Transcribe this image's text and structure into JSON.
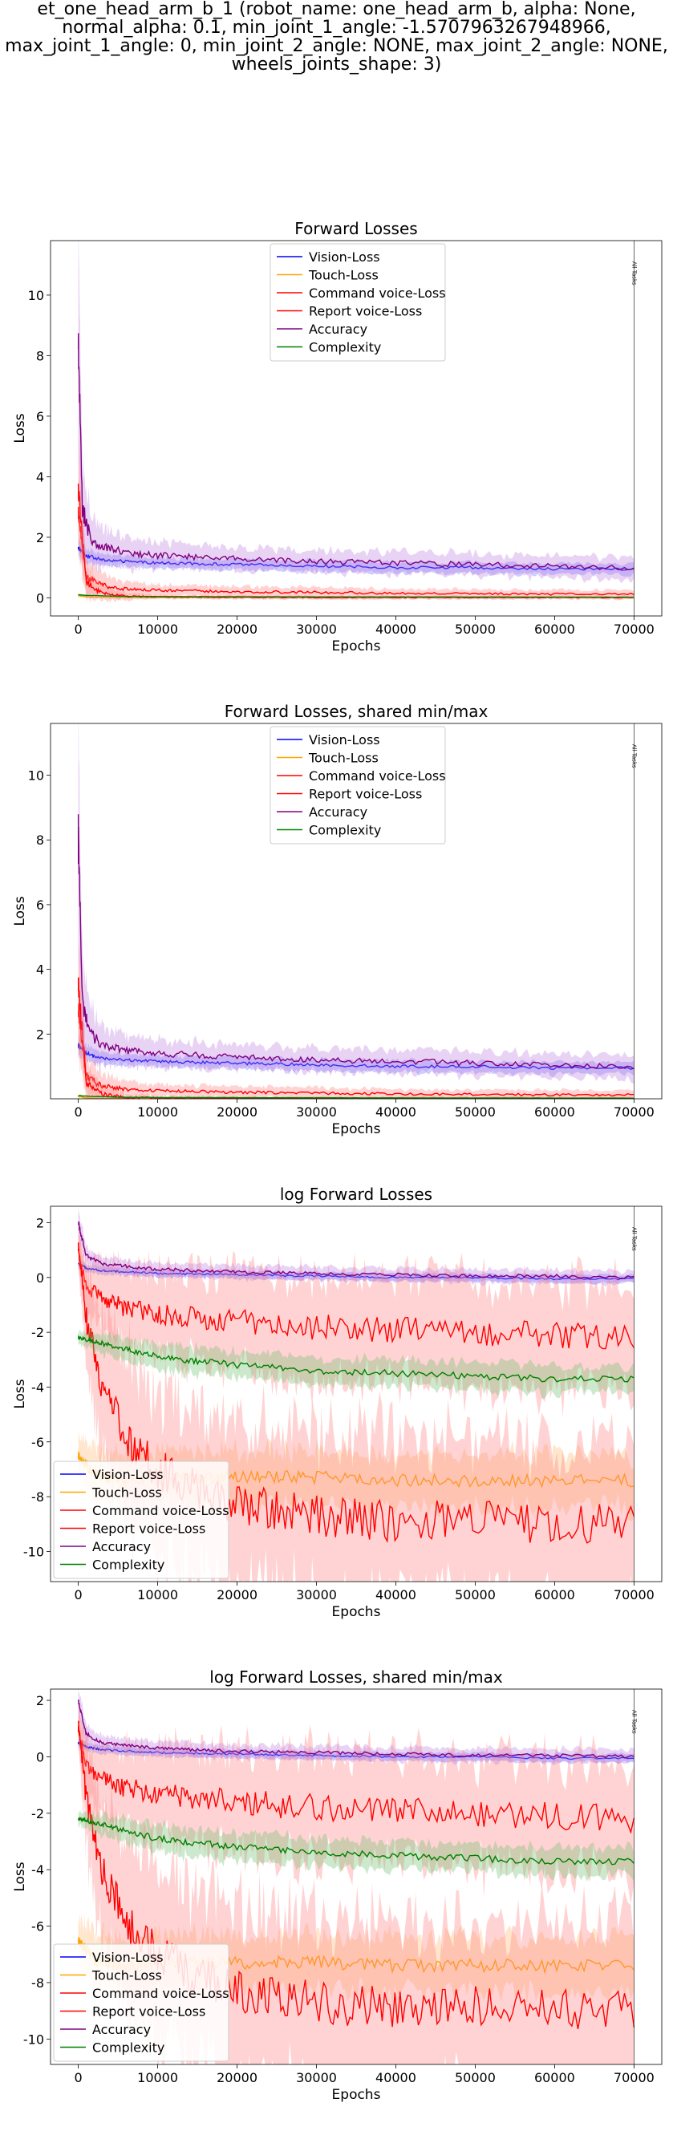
{
  "figure": {
    "suptitle_lines": [
      "et_one_head_arm_b_1 (robot_name: one_head_arm_b, alpha: None,",
      "normal_alpha: 0.1, min_joint_1_angle: -1.5707963267948966,",
      "max_joint_1_angle: 0, min_joint_2_angle: NONE, max_joint_2_angle: NONE,",
      "wheels_joints_shape: 3)"
    ]
  },
  "series_style": [
    {
      "name": "Vision-Loss",
      "color": "#0000ff",
      "band": "#7070ff"
    },
    {
      "name": "Touch-Loss",
      "color": "#ffa500",
      "band": "#ffb870"
    },
    {
      "name": "Command voice-Loss",
      "color": "#ff0000",
      "band": "#ff8080"
    },
    {
      "name": "Report voice-Loss",
      "color": "#ff0000",
      "band": "#ff8080"
    },
    {
      "name": "Accuracy",
      "color": "#800080",
      "band": "#c080e0"
    },
    {
      "name": "Complexity",
      "color": "#008000",
      "band": "#70c070"
    }
  ],
  "chart_data": [
    {
      "type": "line",
      "title": "Forward Losses",
      "xlabel": "Epochs",
      "ylabel": "Loss",
      "xlim": [
        -3500,
        73500
      ],
      "ylim": [
        -0.6,
        11.8
      ],
      "xticks": [
        0,
        10000,
        20000,
        30000,
        40000,
        50000,
        60000,
        70000
      ],
      "yticks": [
        0,
        2,
        4,
        6,
        8,
        10
      ],
      "legend": "top-center",
      "grid": false,
      "vline": {
        "x": 70000,
        "label": "All Tasks"
      },
      "series": [
        {
          "name": "Vision-Loss",
          "x": [
            0,
            1000,
            3000,
            6000,
            10000,
            20000,
            30000,
            40000,
            50000,
            60000,
            70000
          ],
          "y": [
            1.65,
            1.4,
            1.25,
            1.2,
            1.15,
            1.1,
            1.05,
            1.0,
            1.0,
            0.95,
            0.95
          ],
          "band": [
            0.25,
            0.2,
            0.15,
            0.15,
            0.15,
            0.15,
            0.15,
            0.15,
            0.15,
            0.15,
            0.15
          ]
        },
        {
          "name": "Touch-Loss",
          "x": [
            0,
            1000,
            3000,
            10000,
            30000,
            50000,
            70000
          ],
          "y": [
            0.08,
            0.03,
            0.01,
            0.01,
            0.01,
            0.01,
            0.01
          ],
          "band": [
            0.05,
            0.02,
            0.01,
            0.01,
            0.01,
            0.01,
            0.01
          ]
        },
        {
          "name": "Command voice-Loss",
          "x": [
            0,
            1000,
            3000,
            6000,
            10000,
            20000,
            30000,
            40000,
            50000,
            60000,
            70000
          ],
          "y": [
            2.8,
            0.7,
            0.4,
            0.3,
            0.25,
            0.2,
            0.18,
            0.15,
            0.14,
            0.12,
            0.12
          ],
          "band": [
            1.0,
            0.5,
            0.3,
            0.2,
            0.15,
            0.15,
            0.15,
            0.12,
            0.12,
            0.12,
            0.12
          ]
        },
        {
          "name": "Report voice-Loss",
          "x": [
            0,
            1000,
            3000,
            6000,
            10000,
            20000,
            30000,
            40000,
            50000,
            60000,
            70000
          ],
          "y": [
            3.7,
            0.5,
            0.15,
            0.05,
            0.03,
            0.02,
            0.01,
            0.01,
            0.01,
            0.01,
            0.01
          ],
          "band": [
            1.5,
            0.4,
            0.2,
            0.1,
            0.05,
            0.05,
            0.05,
            0.05,
            0.05,
            0.05,
            0.05
          ]
        },
        {
          "name": "Accuracy",
          "x": [
            0,
            500,
            1500,
            3000,
            6000,
            10000,
            20000,
            30000,
            40000,
            50000,
            60000,
            70000
          ],
          "y": [
            8.0,
            3.0,
            2.0,
            1.7,
            1.5,
            1.4,
            1.3,
            1.2,
            1.15,
            1.1,
            1.05,
            1.0
          ],
          "band": [
            3.0,
            1.2,
            0.7,
            0.5,
            0.4,
            0.35,
            0.3,
            0.3,
            0.3,
            0.3,
            0.3,
            0.3
          ]
        },
        {
          "name": "Complexity",
          "x": [
            0,
            1000,
            5000,
            10000,
            30000,
            50000,
            70000
          ],
          "y": [
            0.1,
            0.08,
            0.05,
            0.04,
            0.03,
            0.025,
            0.02
          ],
          "band": [
            0.02,
            0.02,
            0.01,
            0.01,
            0.01,
            0.01,
            0.01
          ]
        }
      ]
    },
    {
      "type": "line",
      "title": "Forward Losses, shared min/max",
      "xlabel": "Epochs",
      "ylabel": "Loss",
      "xlim": [
        -3500,
        73500
      ],
      "ylim": [
        0,
        11.6
      ],
      "xticks": [
        0,
        10000,
        20000,
        30000,
        40000,
        50000,
        60000,
        70000
      ],
      "yticks": [
        2,
        4,
        6,
        8,
        10
      ],
      "legend": "top-center",
      "grid": false,
      "vline": {
        "x": 70000,
        "label": "All Tasks"
      },
      "series": [
        {
          "name": "Vision-Loss",
          "x": [
            0,
            1000,
            3000,
            6000,
            10000,
            20000,
            30000,
            40000,
            50000,
            60000,
            70000
          ],
          "y": [
            1.65,
            1.4,
            1.25,
            1.2,
            1.15,
            1.1,
            1.05,
            1.0,
            1.0,
            0.95,
            0.95
          ],
          "band": [
            0.25,
            0.2,
            0.15,
            0.15,
            0.15,
            0.15,
            0.15,
            0.15,
            0.15,
            0.15,
            0.15
          ]
        },
        {
          "name": "Touch-Loss",
          "x": [
            0,
            1000,
            3000,
            10000,
            30000,
            50000,
            70000
          ],
          "y": [
            0.08,
            0.03,
            0.01,
            0.01,
            0.01,
            0.01,
            0.01
          ],
          "band": [
            0.05,
            0.02,
            0.01,
            0.01,
            0.01,
            0.01,
            0.01
          ]
        },
        {
          "name": "Command voice-Loss",
          "x": [
            0,
            1000,
            3000,
            6000,
            10000,
            20000,
            30000,
            40000,
            50000,
            60000,
            70000
          ],
          "y": [
            2.8,
            0.7,
            0.4,
            0.3,
            0.25,
            0.2,
            0.18,
            0.15,
            0.14,
            0.12,
            0.12
          ],
          "band": [
            1.0,
            0.5,
            0.3,
            0.2,
            0.15,
            0.15,
            0.15,
            0.12,
            0.12,
            0.12,
            0.12
          ]
        },
        {
          "name": "Report voice-Loss",
          "x": [
            0,
            1000,
            3000,
            6000,
            10000,
            20000,
            30000,
            40000,
            50000,
            60000,
            70000
          ],
          "y": [
            3.7,
            0.5,
            0.15,
            0.05,
            0.03,
            0.02,
            0.01,
            0.01,
            0.01,
            0.01,
            0.01
          ],
          "band": [
            1.5,
            0.4,
            0.2,
            0.1,
            0.05,
            0.05,
            0.05,
            0.05,
            0.05,
            0.05,
            0.05
          ]
        },
        {
          "name": "Accuracy",
          "x": [
            0,
            500,
            1500,
            3000,
            6000,
            10000,
            20000,
            30000,
            40000,
            50000,
            60000,
            70000
          ],
          "y": [
            8.0,
            3.0,
            2.0,
            1.7,
            1.5,
            1.4,
            1.3,
            1.2,
            1.15,
            1.1,
            1.05,
            1.0
          ],
          "band": [
            3.0,
            1.2,
            0.7,
            0.5,
            0.4,
            0.35,
            0.3,
            0.3,
            0.3,
            0.3,
            0.3,
            0.3
          ]
        },
        {
          "name": "Complexity",
          "x": [
            0,
            1000,
            5000,
            10000,
            30000,
            50000,
            70000
          ],
          "y": [
            0.1,
            0.08,
            0.05,
            0.04,
            0.03,
            0.025,
            0.02
          ],
          "band": [
            0.02,
            0.02,
            0.01,
            0.01,
            0.01,
            0.01,
            0.01
          ]
        }
      ]
    },
    {
      "type": "line",
      "title": "log Forward Losses",
      "xlabel": "Epochs",
      "ylabel": "Loss",
      "xlim": [
        -3500,
        73500
      ],
      "ylim": [
        -11.1,
        2.6
      ],
      "xticks": [
        0,
        10000,
        20000,
        30000,
        40000,
        50000,
        60000,
        70000
      ],
      "yticks": [
        -10,
        -8,
        -6,
        -4,
        -2,
        0,
        2
      ],
      "legend": "bottom-left",
      "grid": false,
      "vline": {
        "x": 70000,
        "label": "All Tasks"
      },
      "series": [
        {
          "name": "Vision-Loss",
          "x": [
            0,
            1000,
            3000,
            10000,
            20000,
            30000,
            40000,
            50000,
            60000,
            70000
          ],
          "y": [
            0.5,
            0.35,
            0.25,
            0.15,
            0.1,
            0.05,
            0.0,
            0.0,
            -0.05,
            -0.05
          ],
          "band": [
            0.15,
            0.12,
            0.12,
            0.12,
            0.12,
            0.12,
            0.12,
            0.12,
            0.12,
            0.12
          ]
        },
        {
          "name": "Touch-Loss",
          "x": [
            0,
            2000,
            6000,
            10000,
            20000,
            30000,
            40000,
            50000,
            60000,
            70000
          ],
          "y": [
            -6.5,
            -7.2,
            -7.4,
            -7.3,
            -7.3,
            -7.3,
            -7.4,
            -7.4,
            -7.4,
            -7.4
          ],
          "band": [
            0.6,
            0.8,
            0.8,
            0.8,
            0.8,
            0.8,
            0.8,
            0.8,
            0.8,
            0.8
          ]
        },
        {
          "name": "Command voice-Loss",
          "x": [
            0,
            1000,
            3000,
            6000,
            10000,
            20000,
            30000,
            40000,
            50000,
            60000,
            70000
          ],
          "y": [
            1.0,
            -0.3,
            -0.8,
            -1.1,
            -1.3,
            -1.6,
            -1.8,
            -1.9,
            -2.0,
            -2.1,
            -2.2
          ],
          "band": [
            0.5,
            0.8,
            1.0,
            1.2,
            1.3,
            1.5,
            1.6,
            1.6,
            1.6,
            1.6,
            1.6
          ]
        },
        {
          "name": "Report voice-Loss",
          "x": [
            0,
            1000,
            3000,
            6000,
            10000,
            15000,
            20000,
            30000,
            40000,
            50000,
            60000,
            70000
          ],
          "y": [
            1.2,
            -1.5,
            -4.0,
            -5.8,
            -7.0,
            -7.8,
            -8.3,
            -8.7,
            -8.9,
            -8.8,
            -9.0,
            -8.9
          ],
          "band": [
            0.5,
            1.5,
            2.0,
            2.5,
            2.5,
            2.5,
            2.5,
            2.5,
            2.5,
            2.5,
            2.5,
            2.5
          ]
        },
        {
          "name": "Accuracy",
          "x": [
            0,
            1000,
            3000,
            10000,
            20000,
            30000,
            40000,
            50000,
            60000,
            70000
          ],
          "y": [
            2.0,
            0.8,
            0.5,
            0.3,
            0.2,
            0.15,
            0.1,
            0.05,
            0.05,
            0.0
          ],
          "band": [
            0.4,
            0.25,
            0.2,
            0.2,
            0.2,
            0.2,
            0.2,
            0.2,
            0.2,
            0.2
          ]
        },
        {
          "name": "Complexity",
          "x": [
            0,
            3000,
            10000,
            20000,
            30000,
            40000,
            50000,
            60000,
            70000
          ],
          "y": [
            -2.2,
            -2.4,
            -2.9,
            -3.2,
            -3.4,
            -3.5,
            -3.6,
            -3.7,
            -3.7
          ],
          "band": [
            0.2,
            0.3,
            0.4,
            0.4,
            0.4,
            0.4,
            0.4,
            0.4,
            0.4
          ]
        }
      ]
    },
    {
      "type": "line",
      "title": "log Forward Losses, shared min/max",
      "xlabel": "Epochs",
      "ylabel": "Loss",
      "xlim": [
        -3500,
        73500
      ],
      "ylim": [
        -10.9,
        2.4
      ],
      "xticks": [
        0,
        10000,
        20000,
        30000,
        40000,
        50000,
        60000,
        70000
      ],
      "yticks": [
        -10,
        -8,
        -6,
        -4,
        -2,
        0,
        2
      ],
      "legend": "bottom-left",
      "grid": false,
      "vline": {
        "x": 70000,
        "label": "All Tasks"
      },
      "series": [
        {
          "name": "Vision-Loss",
          "x": [
            0,
            1000,
            3000,
            10000,
            20000,
            30000,
            40000,
            50000,
            60000,
            70000
          ],
          "y": [
            0.5,
            0.35,
            0.25,
            0.15,
            0.1,
            0.05,
            0.0,
            0.0,
            -0.05,
            -0.05
          ],
          "band": [
            0.15,
            0.12,
            0.12,
            0.12,
            0.12,
            0.12,
            0.12,
            0.12,
            0.12,
            0.12
          ]
        },
        {
          "name": "Touch-Loss",
          "x": [
            0,
            2000,
            6000,
            10000,
            20000,
            30000,
            40000,
            50000,
            60000,
            70000
          ],
          "y": [
            -6.5,
            -7.2,
            -7.4,
            -7.3,
            -7.3,
            -7.3,
            -7.4,
            -7.4,
            -7.4,
            -7.4
          ],
          "band": [
            0.6,
            0.8,
            0.8,
            0.8,
            0.8,
            0.8,
            0.8,
            0.8,
            0.8,
            0.8
          ]
        },
        {
          "name": "Command voice-Loss",
          "x": [
            0,
            1000,
            3000,
            6000,
            10000,
            20000,
            30000,
            40000,
            50000,
            60000,
            70000
          ],
          "y": [
            1.0,
            -0.3,
            -0.8,
            -1.1,
            -1.3,
            -1.6,
            -1.8,
            -1.9,
            -2.0,
            -2.1,
            -2.2
          ],
          "band": [
            0.5,
            0.8,
            1.0,
            1.2,
            1.3,
            1.5,
            1.6,
            1.6,
            1.6,
            1.6,
            1.6
          ]
        },
        {
          "name": "Report voice-Loss",
          "x": [
            0,
            1000,
            3000,
            6000,
            10000,
            15000,
            20000,
            30000,
            40000,
            50000,
            60000,
            70000
          ],
          "y": [
            1.2,
            -1.5,
            -4.0,
            -5.8,
            -7.0,
            -7.8,
            -8.3,
            -8.7,
            -8.9,
            -8.8,
            -9.0,
            -8.9
          ],
          "band": [
            0.5,
            1.5,
            2.0,
            2.5,
            2.5,
            2.5,
            2.5,
            2.5,
            2.5,
            2.5,
            2.5,
            2.5
          ]
        },
        {
          "name": "Accuracy",
          "x": [
            0,
            1000,
            3000,
            10000,
            20000,
            30000,
            40000,
            50000,
            60000,
            70000
          ],
          "y": [
            2.0,
            0.8,
            0.5,
            0.3,
            0.2,
            0.15,
            0.1,
            0.05,
            0.05,
            0.0
          ],
          "band": [
            0.4,
            0.25,
            0.2,
            0.2,
            0.2,
            0.2,
            0.2,
            0.2,
            0.2,
            0.2
          ]
        },
        {
          "name": "Complexity",
          "x": [
            0,
            3000,
            10000,
            20000,
            30000,
            40000,
            50000,
            60000,
            70000
          ],
          "y": [
            -2.2,
            -2.4,
            -2.9,
            -3.2,
            -3.4,
            -3.5,
            -3.6,
            -3.7,
            -3.7
          ],
          "band": [
            0.2,
            0.3,
            0.4,
            0.4,
            0.4,
            0.4,
            0.4,
            0.4,
            0.4
          ]
        }
      ]
    }
  ]
}
